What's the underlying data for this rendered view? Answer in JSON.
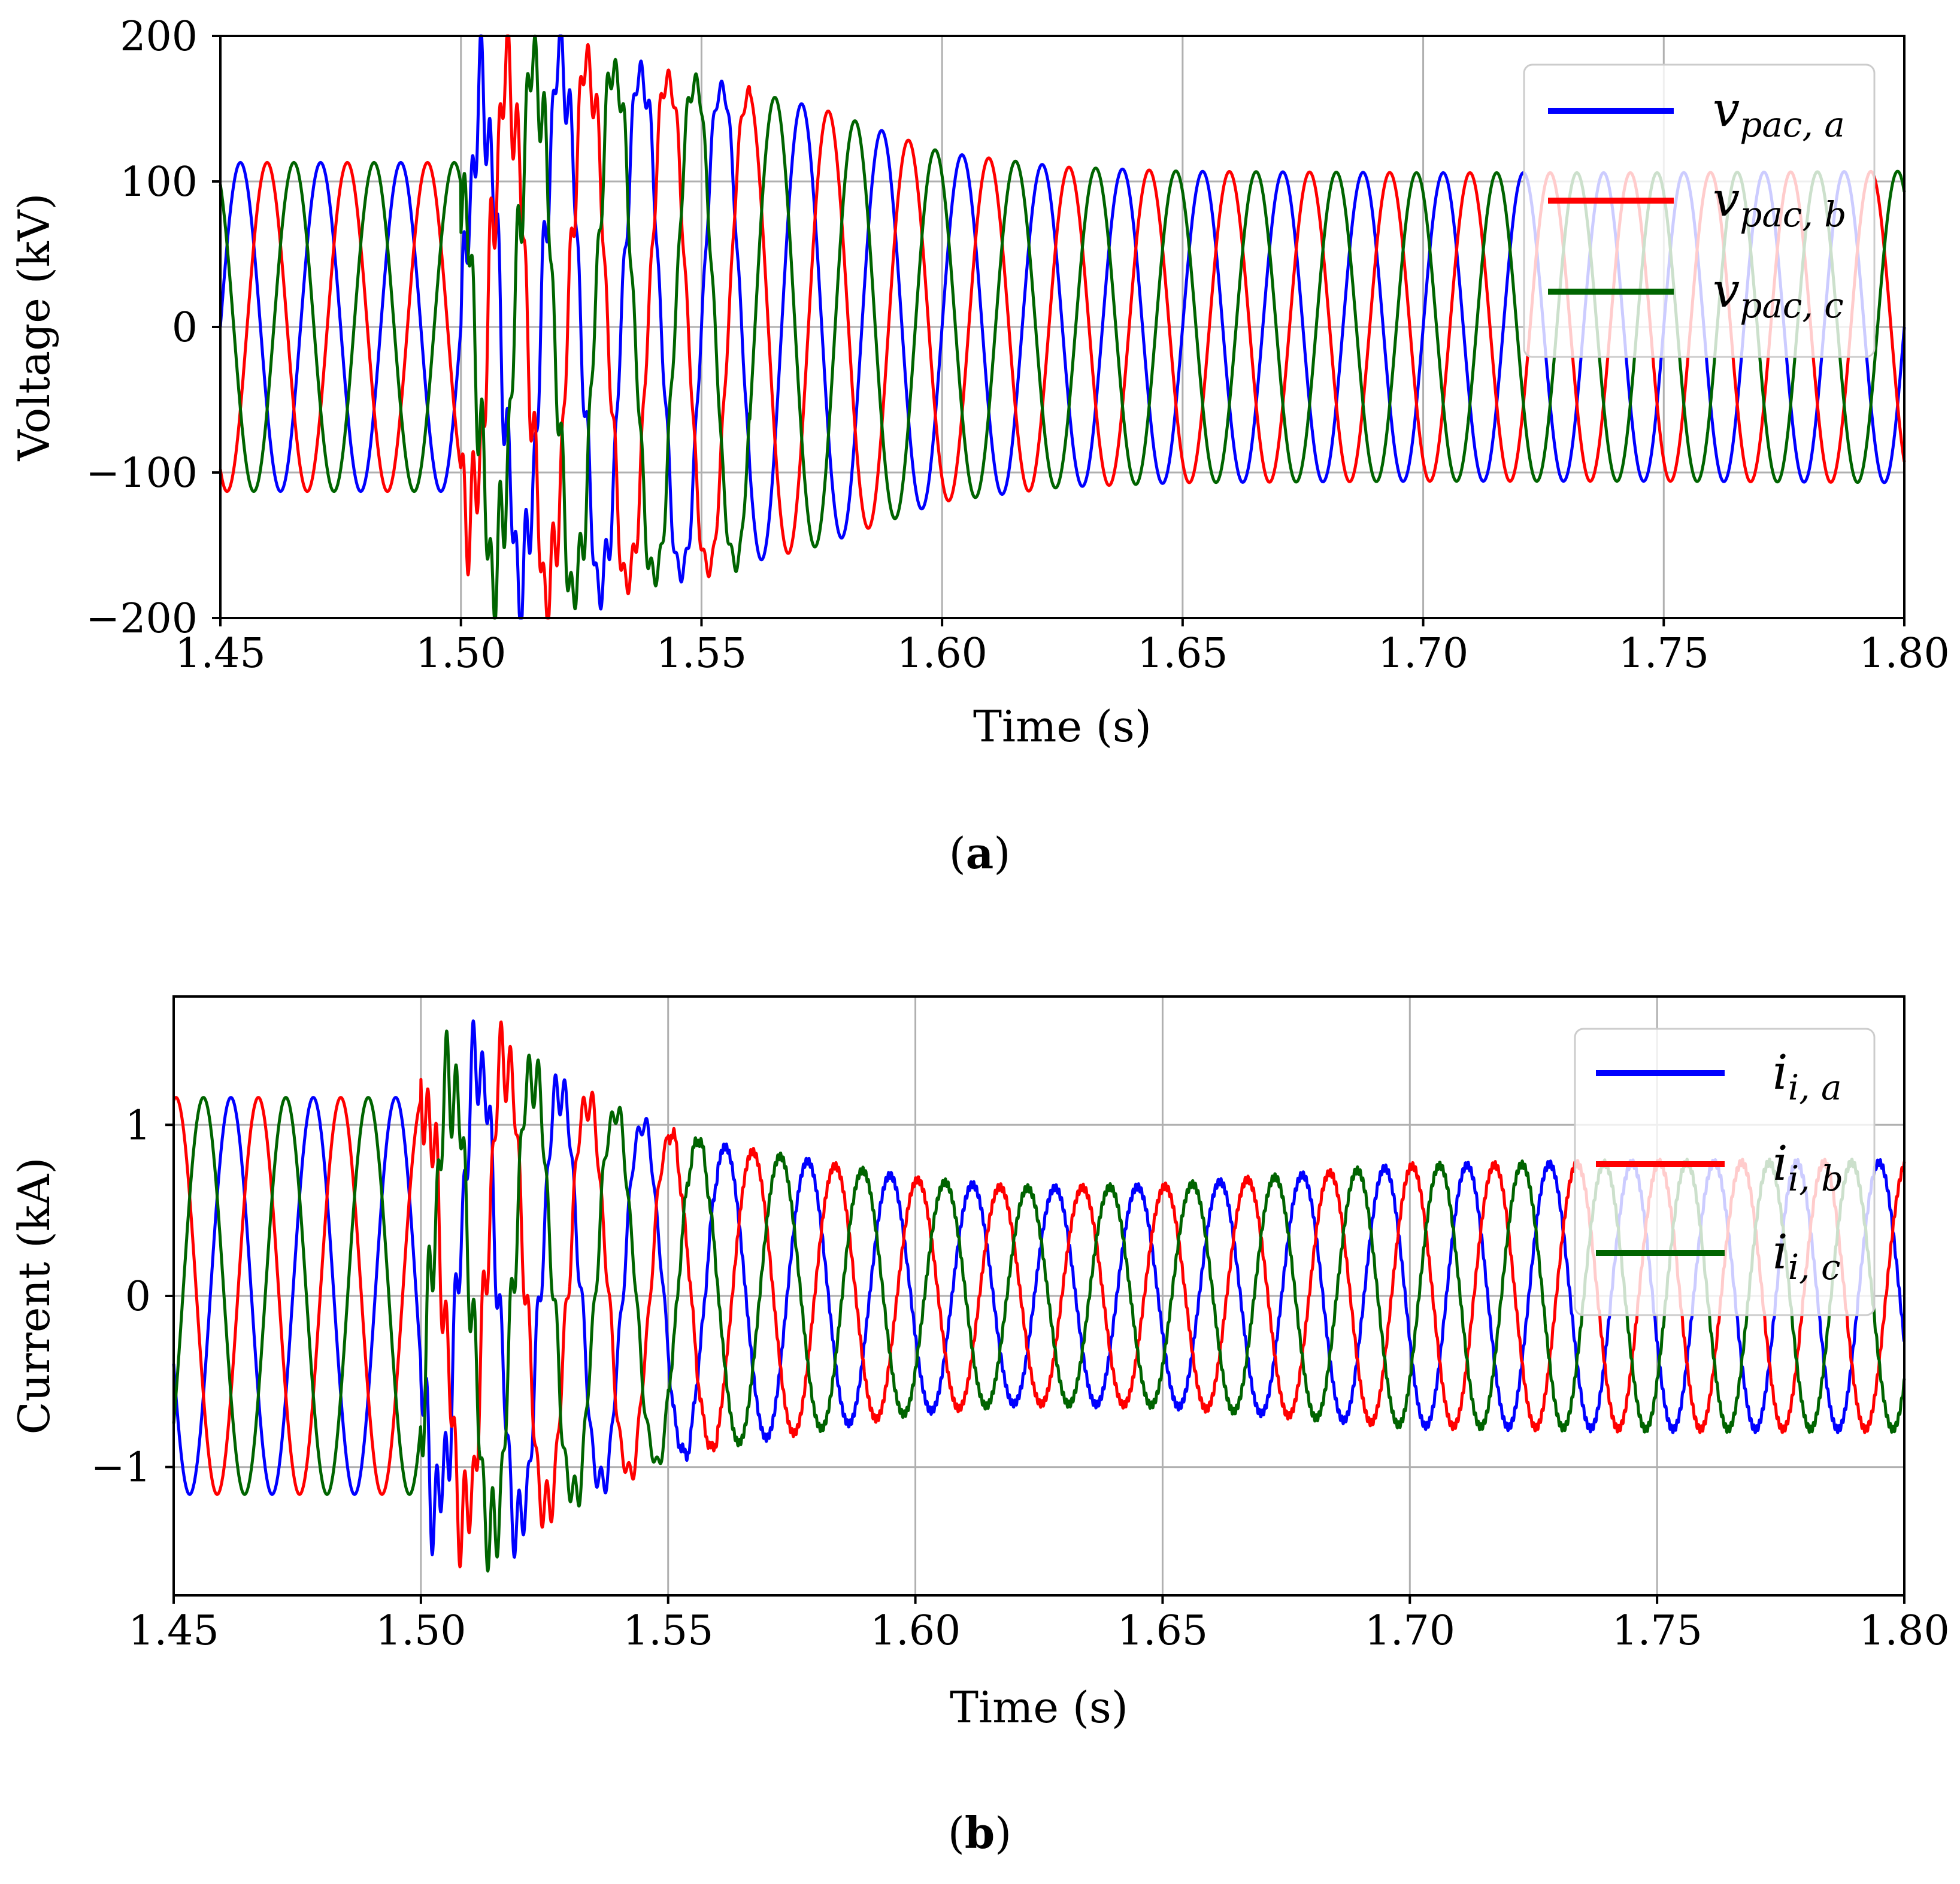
{
  "chart_data": [
    {
      "type": "line",
      "panel": "a",
      "caption_letter": "a",
      "xlabel": "Time (s)",
      "ylabel": "Voltage (kV)",
      "xlim": [
        1.45,
        1.8
      ],
      "ylim": [
        -200,
        200
      ],
      "xticks": [
        1.45,
        1.5,
        1.55,
        1.6,
        1.65,
        1.7,
        1.75,
        1.8
      ],
      "xtick_labels": [
        "1.45",
        "1.50",
        "1.55",
        "1.60",
        "1.65",
        "1.70",
        "1.75",
        "1.80"
      ],
      "yticks": [
        -200,
        -100,
        0,
        100,
        200
      ],
      "ytick_labels": [
        "−200",
        "−100",
        "0",
        "100",
        "200"
      ],
      "grid": true,
      "legend_position": "top-right",
      "frequency_hz": 60,
      "fault_start_s": 1.5,
      "amplitude_profile": {
        "t": [
          1.45,
          1.5,
          1.505,
          1.52,
          1.55,
          1.575,
          1.6,
          1.625,
          1.65,
          1.7,
          1.75,
          1.8
        ],
        "amp": [
          113,
          113,
          165,
          185,
          170,
          150,
          120,
          110,
          107,
          106,
          106,
          107
        ]
      },
      "series": [
        {
          "name": "v",
          "subscript": "pac, a",
          "color": "#0000ff",
          "phase_deg": 0
        },
        {
          "name": "v",
          "subscript": "pac, b",
          "color": "#ff0000",
          "phase_deg": -120
        },
        {
          "name": "v",
          "subscript": "pac, c",
          "color": "#006400",
          "phase_deg": 120
        }
      ]
    },
    {
      "type": "line",
      "panel": "b",
      "caption_letter": "b",
      "xlabel": "Time (s)",
      "ylabel": "Current (kA)",
      "xlim": [
        1.45,
        1.8
      ],
      "ylim": [
        -1.75,
        1.75
      ],
      "xticks": [
        1.45,
        1.5,
        1.55,
        1.6,
        1.65,
        1.7,
        1.75,
        1.8
      ],
      "xtick_labels": [
        "1.45",
        "1.50",
        "1.55",
        "1.60",
        "1.65",
        "1.70",
        "1.75",
        "1.80"
      ],
      "yticks": [
        -1,
        0,
        1
      ],
      "ytick_labels": [
        "−1",
        "0",
        "1"
      ],
      "grid": true,
      "legend_position": "top-right",
      "frequency_hz": 60,
      "fault_start_s": 1.5,
      "amplitude_profile": {
        "t": [
          1.45,
          1.5,
          1.505,
          1.515,
          1.53,
          1.55,
          1.56,
          1.58,
          1.6,
          1.62,
          1.65,
          1.7,
          1.75,
          1.8
        ],
        "amp": [
          1.16,
          1.16,
          1.25,
          1.45,
          1.2,
          0.95,
          0.88,
          0.78,
          0.68,
          0.63,
          0.64,
          0.76,
          0.78,
          0.78
        ]
      },
      "series": [
        {
          "name": "i",
          "subscript": "i, a",
          "color": "#0000ff",
          "phase_deg": 200
        },
        {
          "name": "i",
          "subscript": "i, b",
          "color": "#ff0000",
          "phase_deg": 80
        },
        {
          "name": "i",
          "subscript": "i, c",
          "color": "#006400",
          "phase_deg": -40
        }
      ]
    }
  ]
}
